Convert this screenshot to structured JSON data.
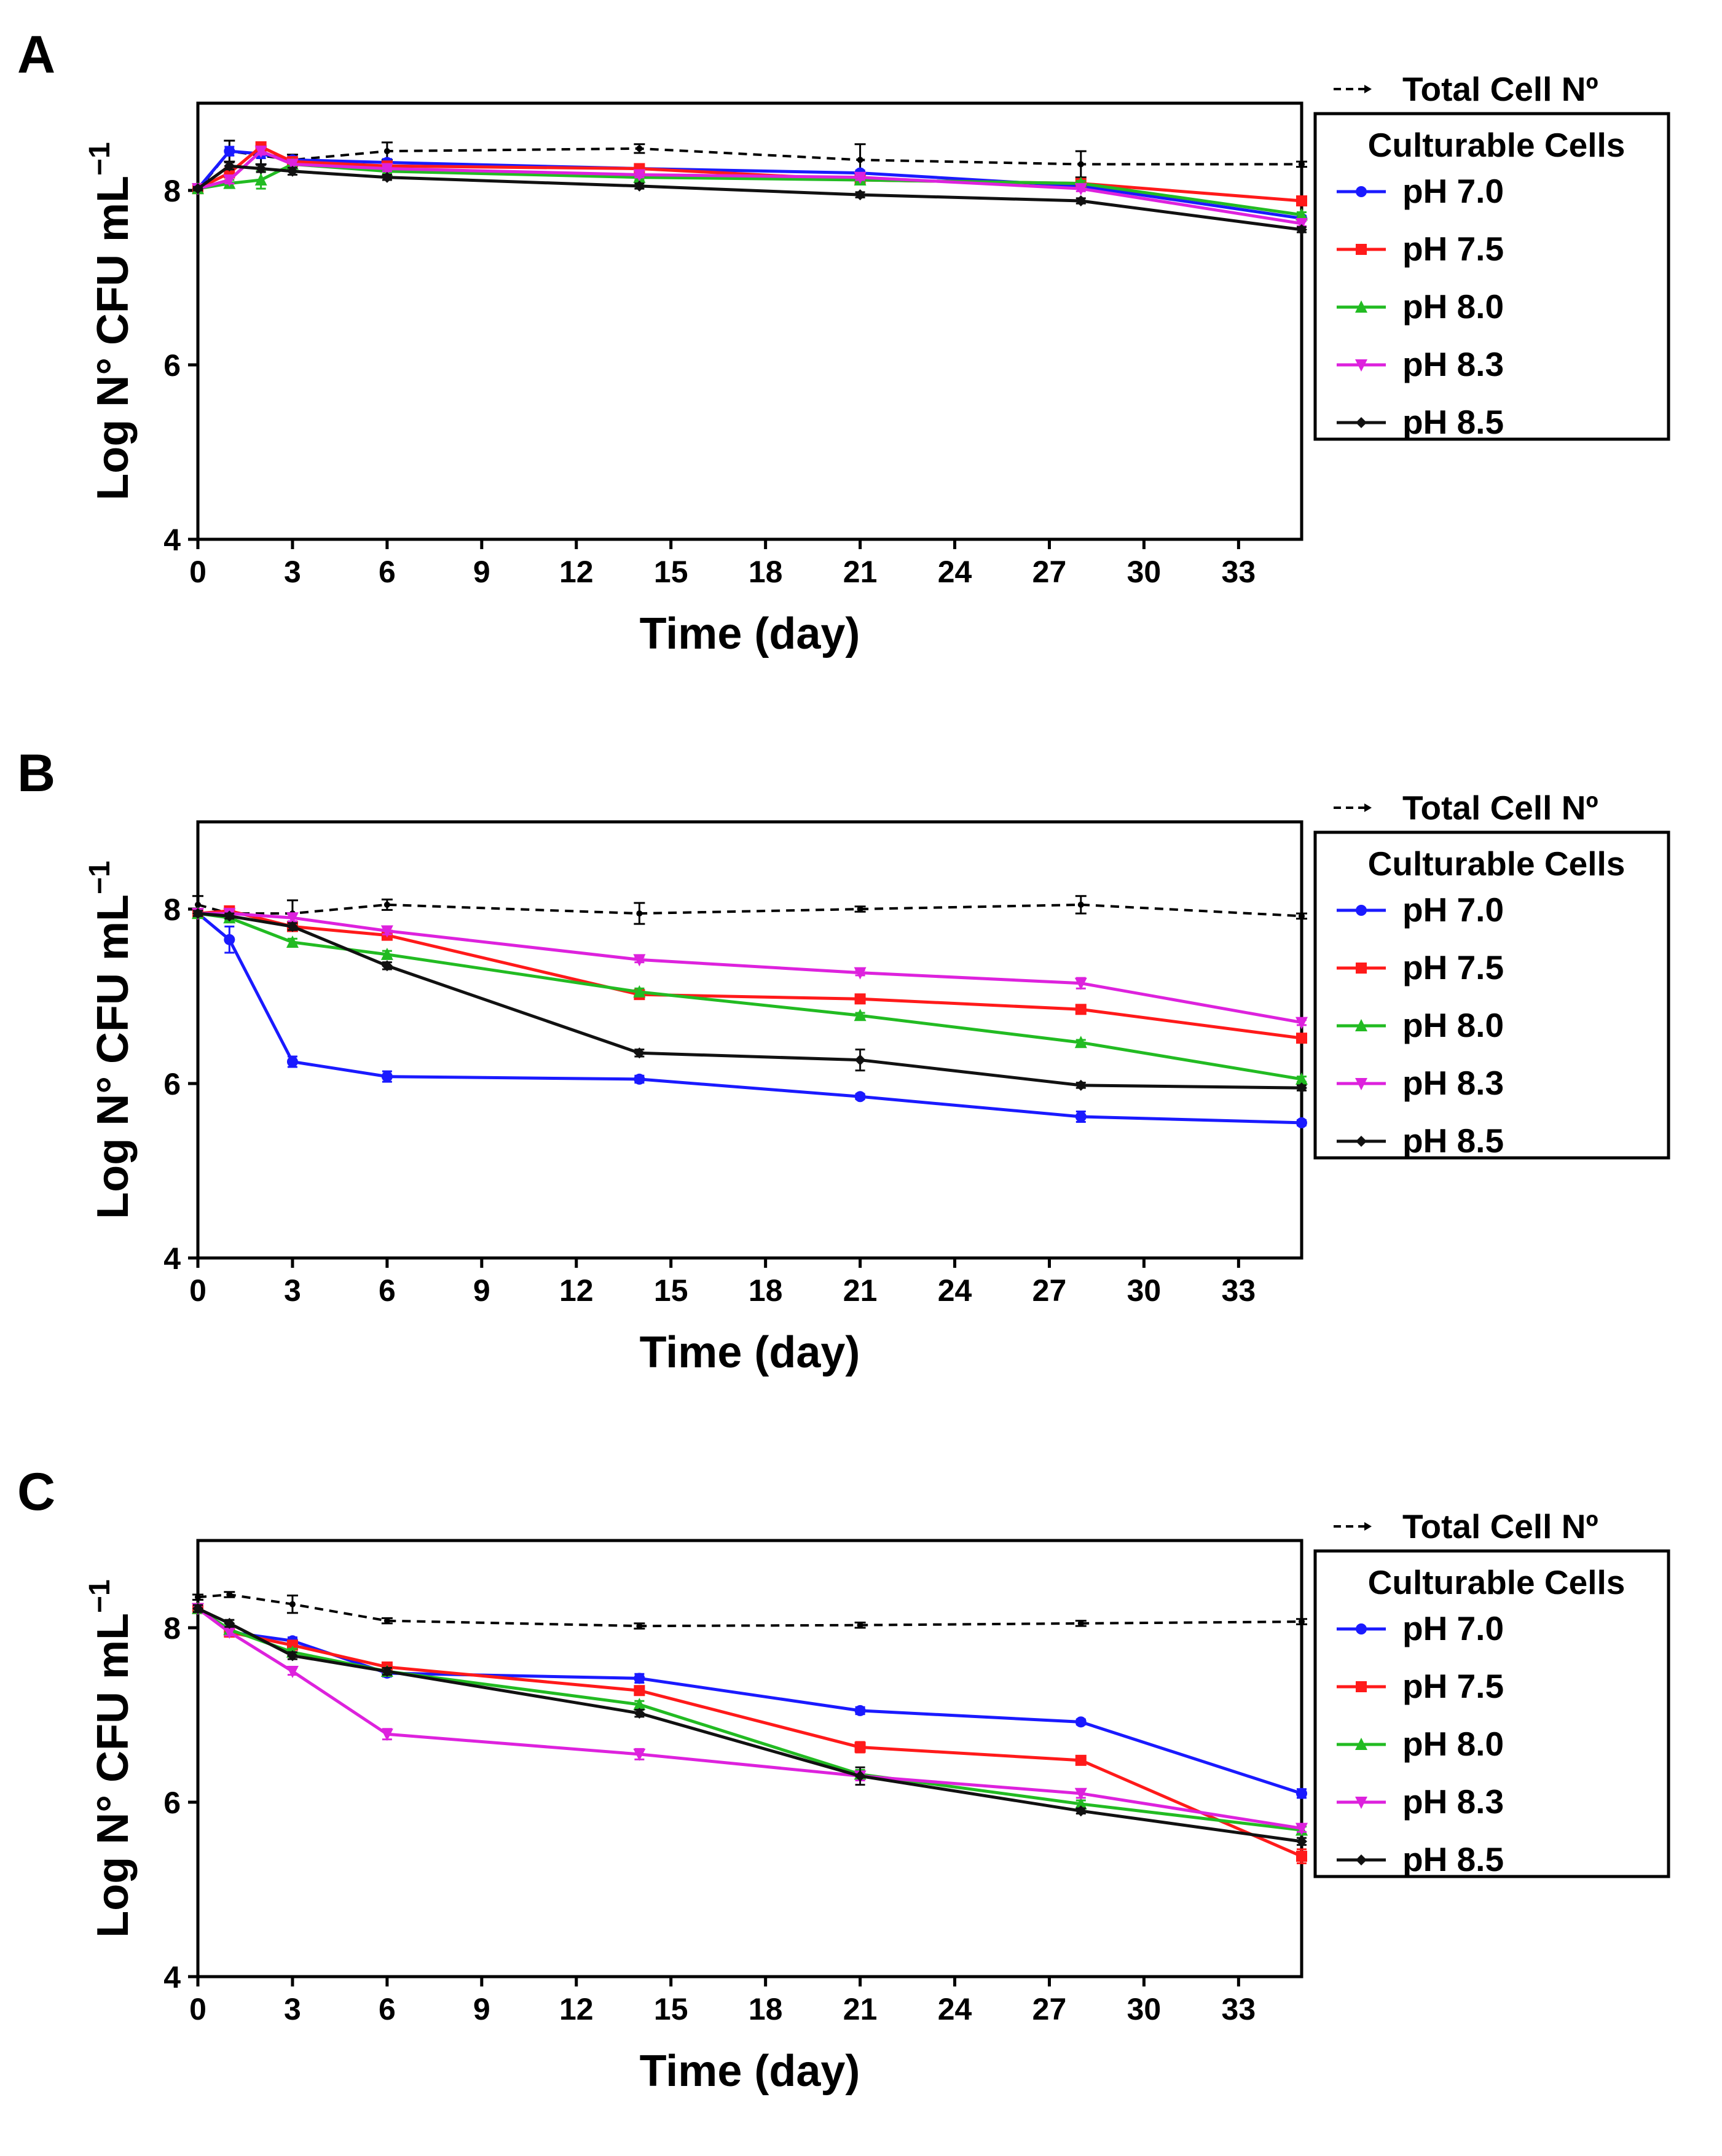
{
  "chart_data": [
    {
      "panel": "A",
      "type": "line",
      "xlabel": "Time (day)",
      "ylabel": "Log N° CFU mL",
      "ylabel_sup": "−1",
      "xlim": [
        0,
        35
      ],
      "ylim": [
        4,
        9
      ],
      "xticks": [
        0,
        3,
        6,
        9,
        12,
        15,
        18,
        21,
        24,
        27,
        30,
        33
      ],
      "yticks": [
        4,
        6,
        8
      ],
      "legend_total": "Total Cell Nº",
      "legend_title": "Culturable Cells",
      "total": {
        "name": "Total Cell Nº",
        "x": [
          0,
          1,
          2,
          3,
          6,
          14,
          21,
          28,
          35
        ],
        "values": [
          8.0,
          8.45,
          8.4,
          8.35,
          8.45,
          8.48,
          8.35,
          8.3,
          8.3
        ],
        "errors": [
          0.03,
          0.12,
          0.1,
          0.06,
          0.1,
          0.05,
          0.18,
          0.15,
          0.03
        ]
      },
      "series": [
        {
          "name": "pH 7.0",
          "color": "#1a1aff",
          "marker": "circle",
          "x": [
            0,
            1,
            2,
            3,
            6,
            14,
            21,
            28,
            35
          ],
          "values": [
            8.02,
            8.45,
            8.42,
            8.35,
            8.32,
            8.25,
            8.2,
            8.05,
            7.68
          ],
          "errors": [
            0.02,
            0.05,
            0.05,
            0.04,
            0.04,
            0.03,
            0.03,
            0.03,
            0.03
          ]
        },
        {
          "name": "pH 7.5",
          "color": "#ff1a1a",
          "marker": "square",
          "x": [
            0,
            1,
            2,
            3,
            6,
            14,
            21,
            28,
            35
          ],
          "values": [
            8.02,
            8.2,
            8.5,
            8.33,
            8.28,
            8.25,
            8.12,
            8.08,
            7.88
          ],
          "errors": [
            0.02,
            0.04,
            0.04,
            0.04,
            0.03,
            0.03,
            0.03,
            0.03,
            0.03
          ]
        },
        {
          "name": "pH 8.0",
          "color": "#22bb22",
          "marker": "triangle-up",
          "x": [
            0,
            1,
            2,
            3,
            6,
            14,
            21,
            28,
            35
          ],
          "values": [
            8.02,
            8.08,
            8.12,
            8.3,
            8.22,
            8.15,
            8.12,
            8.08,
            7.72
          ],
          "errors": [
            0.02,
            0.04,
            0.1,
            0.04,
            0.03,
            0.03,
            0.03,
            0.03,
            0.03
          ]
        },
        {
          "name": "pH 8.3",
          "color": "#dd22dd",
          "marker": "triangle-down",
          "x": [
            0,
            1,
            2,
            3,
            6,
            14,
            21,
            28,
            35
          ],
          "values": [
            8.02,
            8.12,
            8.45,
            8.3,
            8.25,
            8.18,
            8.15,
            8.02,
            7.62
          ],
          "errors": [
            0.02,
            0.04,
            0.04,
            0.04,
            0.03,
            0.03,
            0.03,
            0.03,
            0.03
          ]
        },
        {
          "name": "pH 8.5",
          "color": "#111111",
          "marker": "diamond",
          "x": [
            0,
            1,
            2,
            3,
            6,
            14,
            21,
            28,
            35
          ],
          "values": [
            8.02,
            8.28,
            8.25,
            8.22,
            8.15,
            8.05,
            7.95,
            7.88,
            7.55
          ],
          "errors": [
            0.02,
            0.04,
            0.04,
            0.04,
            0.03,
            0.03,
            0.03,
            0.03,
            0.03
          ]
        }
      ]
    },
    {
      "panel": "B",
      "type": "line",
      "xlabel": "Time (day)",
      "ylabel": "Log N° CFU mL",
      "ylabel_sup": "−1",
      "xlim": [
        0,
        35
      ],
      "ylim": [
        4,
        9
      ],
      "xticks": [
        0,
        3,
        6,
        9,
        12,
        15,
        18,
        21,
        24,
        27,
        30,
        33
      ],
      "yticks": [
        4,
        6,
        8
      ],
      "legend_total": "Total Cell Nº",
      "legend_title": "Culturable Cells",
      "total": {
        "name": "Total Cell Nº",
        "x": [
          0,
          1,
          3,
          6,
          14,
          21,
          28,
          35
        ],
        "values": [
          8.05,
          7.95,
          7.95,
          8.05,
          7.95,
          8.0,
          8.05,
          7.92
        ],
        "errors": [
          0.1,
          0.05,
          0.15,
          0.06,
          0.12,
          0.03,
          0.1,
          0.03
        ]
      },
      "series": [
        {
          "name": "pH 7.0",
          "color": "#1a1aff",
          "marker": "circle",
          "x": [
            0,
            1,
            3,
            6,
            14,
            21,
            28,
            35
          ],
          "values": [
            7.95,
            7.65,
            6.25,
            6.08,
            6.05,
            5.85,
            5.62,
            5.55
          ],
          "errors": [
            0.05,
            0.15,
            0.06,
            0.06,
            0.04,
            0.03,
            0.06,
            0.03
          ]
        },
        {
          "name": "pH 7.5",
          "color": "#ff1a1a",
          "marker": "square",
          "x": [
            0,
            1,
            3,
            6,
            14,
            21,
            28,
            35
          ],
          "values": [
            7.95,
            7.98,
            7.8,
            7.7,
            7.02,
            6.97,
            6.85,
            6.52
          ],
          "errors": [
            0.03,
            0.03,
            0.04,
            0.04,
            0.04,
            0.03,
            0.04,
            0.03
          ]
        },
        {
          "name": "pH 8.0",
          "color": "#22bb22",
          "marker": "triangle-up",
          "x": [
            0,
            1,
            3,
            6,
            14,
            21,
            28,
            35
          ],
          "values": [
            7.95,
            7.9,
            7.62,
            7.48,
            7.05,
            6.78,
            6.47,
            6.05
          ],
          "errors": [
            0.03,
            0.03,
            0.04,
            0.04,
            0.04,
            0.03,
            0.03,
            0.03
          ]
        },
        {
          "name": "pH 8.3",
          "color": "#dd22dd",
          "marker": "triangle-down",
          "x": [
            0,
            1,
            3,
            6,
            14,
            21,
            28,
            35
          ],
          "values": [
            7.95,
            7.95,
            7.9,
            7.75,
            7.42,
            7.27,
            7.15,
            6.7
          ],
          "errors": [
            0.03,
            0.03,
            0.04,
            0.04,
            0.03,
            0.03,
            0.06,
            0.03
          ]
        },
        {
          "name": "pH 8.5",
          "color": "#111111",
          "marker": "diamond",
          "x": [
            0,
            1,
            3,
            6,
            14,
            21,
            28,
            35
          ],
          "values": [
            7.95,
            7.92,
            7.8,
            7.35,
            6.35,
            6.27,
            5.98,
            5.95
          ],
          "errors": [
            0.03,
            0.03,
            0.04,
            0.04,
            0.04,
            0.12,
            0.03,
            0.03
          ]
        }
      ]
    },
    {
      "panel": "C",
      "type": "line",
      "xlabel": "Time (day)",
      "ylabel": "Log N° CFU mL",
      "ylabel_sup": "−1",
      "xlim": [
        0,
        35
      ],
      "ylim": [
        4,
        9
      ],
      "xticks": [
        0,
        3,
        6,
        9,
        12,
        15,
        18,
        21,
        24,
        27,
        30,
        33
      ],
      "yticks": [
        4,
        6,
        8
      ],
      "legend_total": "Total Cell Nº",
      "legend_title": "Culturable Cells",
      "total": {
        "name": "Total Cell Nº",
        "x": [
          0,
          1,
          3,
          6,
          14,
          21,
          28,
          35
        ],
        "values": [
          8.35,
          8.38,
          8.27,
          8.08,
          8.02,
          8.03,
          8.05,
          8.07
        ],
        "errors": [
          0.03,
          0.03,
          0.1,
          0.03,
          0.03,
          0.03,
          0.03,
          0.03
        ]
      },
      "series": [
        {
          "name": "pH 7.0",
          "color": "#1a1aff",
          "marker": "circle",
          "x": [
            0,
            1,
            3,
            6,
            14,
            21,
            28,
            35
          ],
          "values": [
            8.22,
            7.95,
            7.85,
            7.48,
            7.42,
            7.05,
            6.92,
            6.1
          ],
          "errors": [
            0.04,
            0.04,
            0.04,
            0.04,
            0.05,
            0.04,
            0.03,
            0.05
          ]
        },
        {
          "name": "pH 7.5",
          "color": "#ff1a1a",
          "marker": "square",
          "x": [
            0,
            1,
            3,
            6,
            14,
            21,
            28,
            35
          ],
          "values": [
            8.22,
            7.95,
            7.8,
            7.55,
            7.28,
            6.63,
            6.48,
            5.38
          ],
          "errors": [
            0.04,
            0.04,
            0.04,
            0.04,
            0.05,
            0.06,
            0.03,
            0.08
          ]
        },
        {
          "name": "pH 8.0",
          "color": "#22bb22",
          "marker": "triangle-up",
          "x": [
            0,
            1,
            3,
            6,
            14,
            21,
            28,
            35
          ],
          "values": [
            8.22,
            7.98,
            7.72,
            7.5,
            7.12,
            6.32,
            5.98,
            5.68
          ],
          "errors": [
            0.04,
            0.04,
            0.04,
            0.04,
            0.04,
            0.05,
            0.04,
            0.04
          ]
        },
        {
          "name": "pH 8.3",
          "color": "#dd22dd",
          "marker": "triangle-down",
          "x": [
            0,
            1,
            3,
            6,
            14,
            21,
            28,
            35
          ],
          "values": [
            8.22,
            7.95,
            7.5,
            6.78,
            6.55,
            6.3,
            6.1,
            5.7
          ],
          "errors": [
            0.04,
            0.04,
            0.04,
            0.06,
            0.06,
            0.05,
            0.05,
            0.04
          ]
        },
        {
          "name": "pH 8.5",
          "color": "#111111",
          "marker": "diamond",
          "x": [
            0,
            1,
            3,
            6,
            14,
            21,
            28,
            35
          ],
          "values": [
            8.22,
            8.05,
            7.68,
            7.5,
            7.02,
            6.3,
            5.9,
            5.55
          ],
          "errors": [
            0.04,
            0.04,
            0.04,
            0.04,
            0.04,
            0.1,
            0.03,
            0.04
          ]
        }
      ]
    }
  ]
}
